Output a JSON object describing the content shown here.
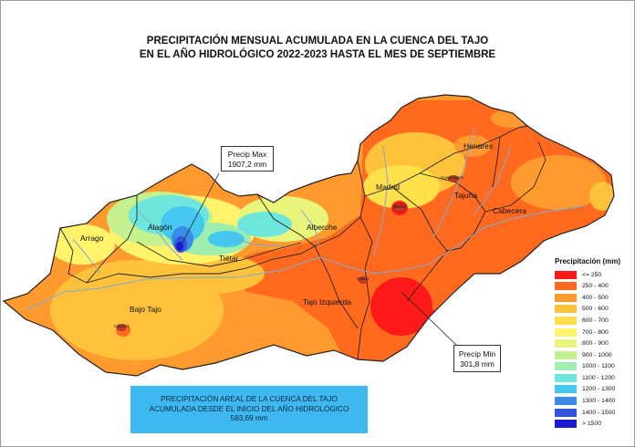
{
  "title": {
    "line1": "PRECIPITACIÓN MENSUAL ACUMULADA EN LA CUENCA DEL TAJO",
    "line2": "EN EL AÑO HIDROLÓGICO 2022-2023 HASTA EL MES DE SEPTIEMBRE"
  },
  "callouts": {
    "max": {
      "label": "Precip Max",
      "value": "1907,2 mm"
    },
    "min": {
      "label": "Precip Min",
      "value": "301,8 mm"
    }
  },
  "subbasins": {
    "arrago": "Arrago",
    "alagon": "Alagón",
    "tietar": "Tiétar",
    "alberche": "Alberche",
    "bajo_tajo": "Bajo Tajo",
    "tajo_izquierda": "Tajo Izquierda",
    "madrid": "Madrid",
    "henares": "Henares",
    "tajuna": "Tajuña",
    "cabecera": "Cabecera"
  },
  "cities": {
    "madrid": "Madrid",
    "toledo": "Toledo",
    "guadalajara": "Guadalajara",
    "caceres": "Cáceres"
  },
  "legend": {
    "title": "Precipitación (mm)",
    "items": [
      {
        "label": "<= 250",
        "color": "#ff1a1a"
      },
      {
        "label": "250 - 400",
        "color": "#ff6a1f"
      },
      {
        "label": "400 - 500",
        "color": "#ff9a2e"
      },
      {
        "label": "500 - 600",
        "color": "#ffc23a"
      },
      {
        "label": "600 - 700",
        "color": "#ffe04a"
      },
      {
        "label": "700 - 800",
        "color": "#fff36a"
      },
      {
        "label": "800 - 900",
        "color": "#e9f57a"
      },
      {
        "label": "900 - 1000",
        "color": "#c4f08e"
      },
      {
        "label": "1000 - 1100",
        "color": "#9eeeb0"
      },
      {
        "label": "1100 - 1200",
        "color": "#6fe6dc"
      },
      {
        "label": "1200 - 1300",
        "color": "#45c8f0"
      },
      {
        "label": "1300 - 1400",
        "color": "#3b8ce8"
      },
      {
        "label": "1400 - 1500",
        "color": "#3355dd"
      },
      {
        "label": "> 1500",
        "color": "#1b1bd0"
      }
    ]
  },
  "areal": {
    "line1": "PRECIPITACIÓN AREAL DE LA CUENCA DEL TAJO",
    "line2": "ACUMULADA DESDE EL INICIO DEL AÑO HIDROLÓGICO",
    "value": "583,69 mm"
  }
}
